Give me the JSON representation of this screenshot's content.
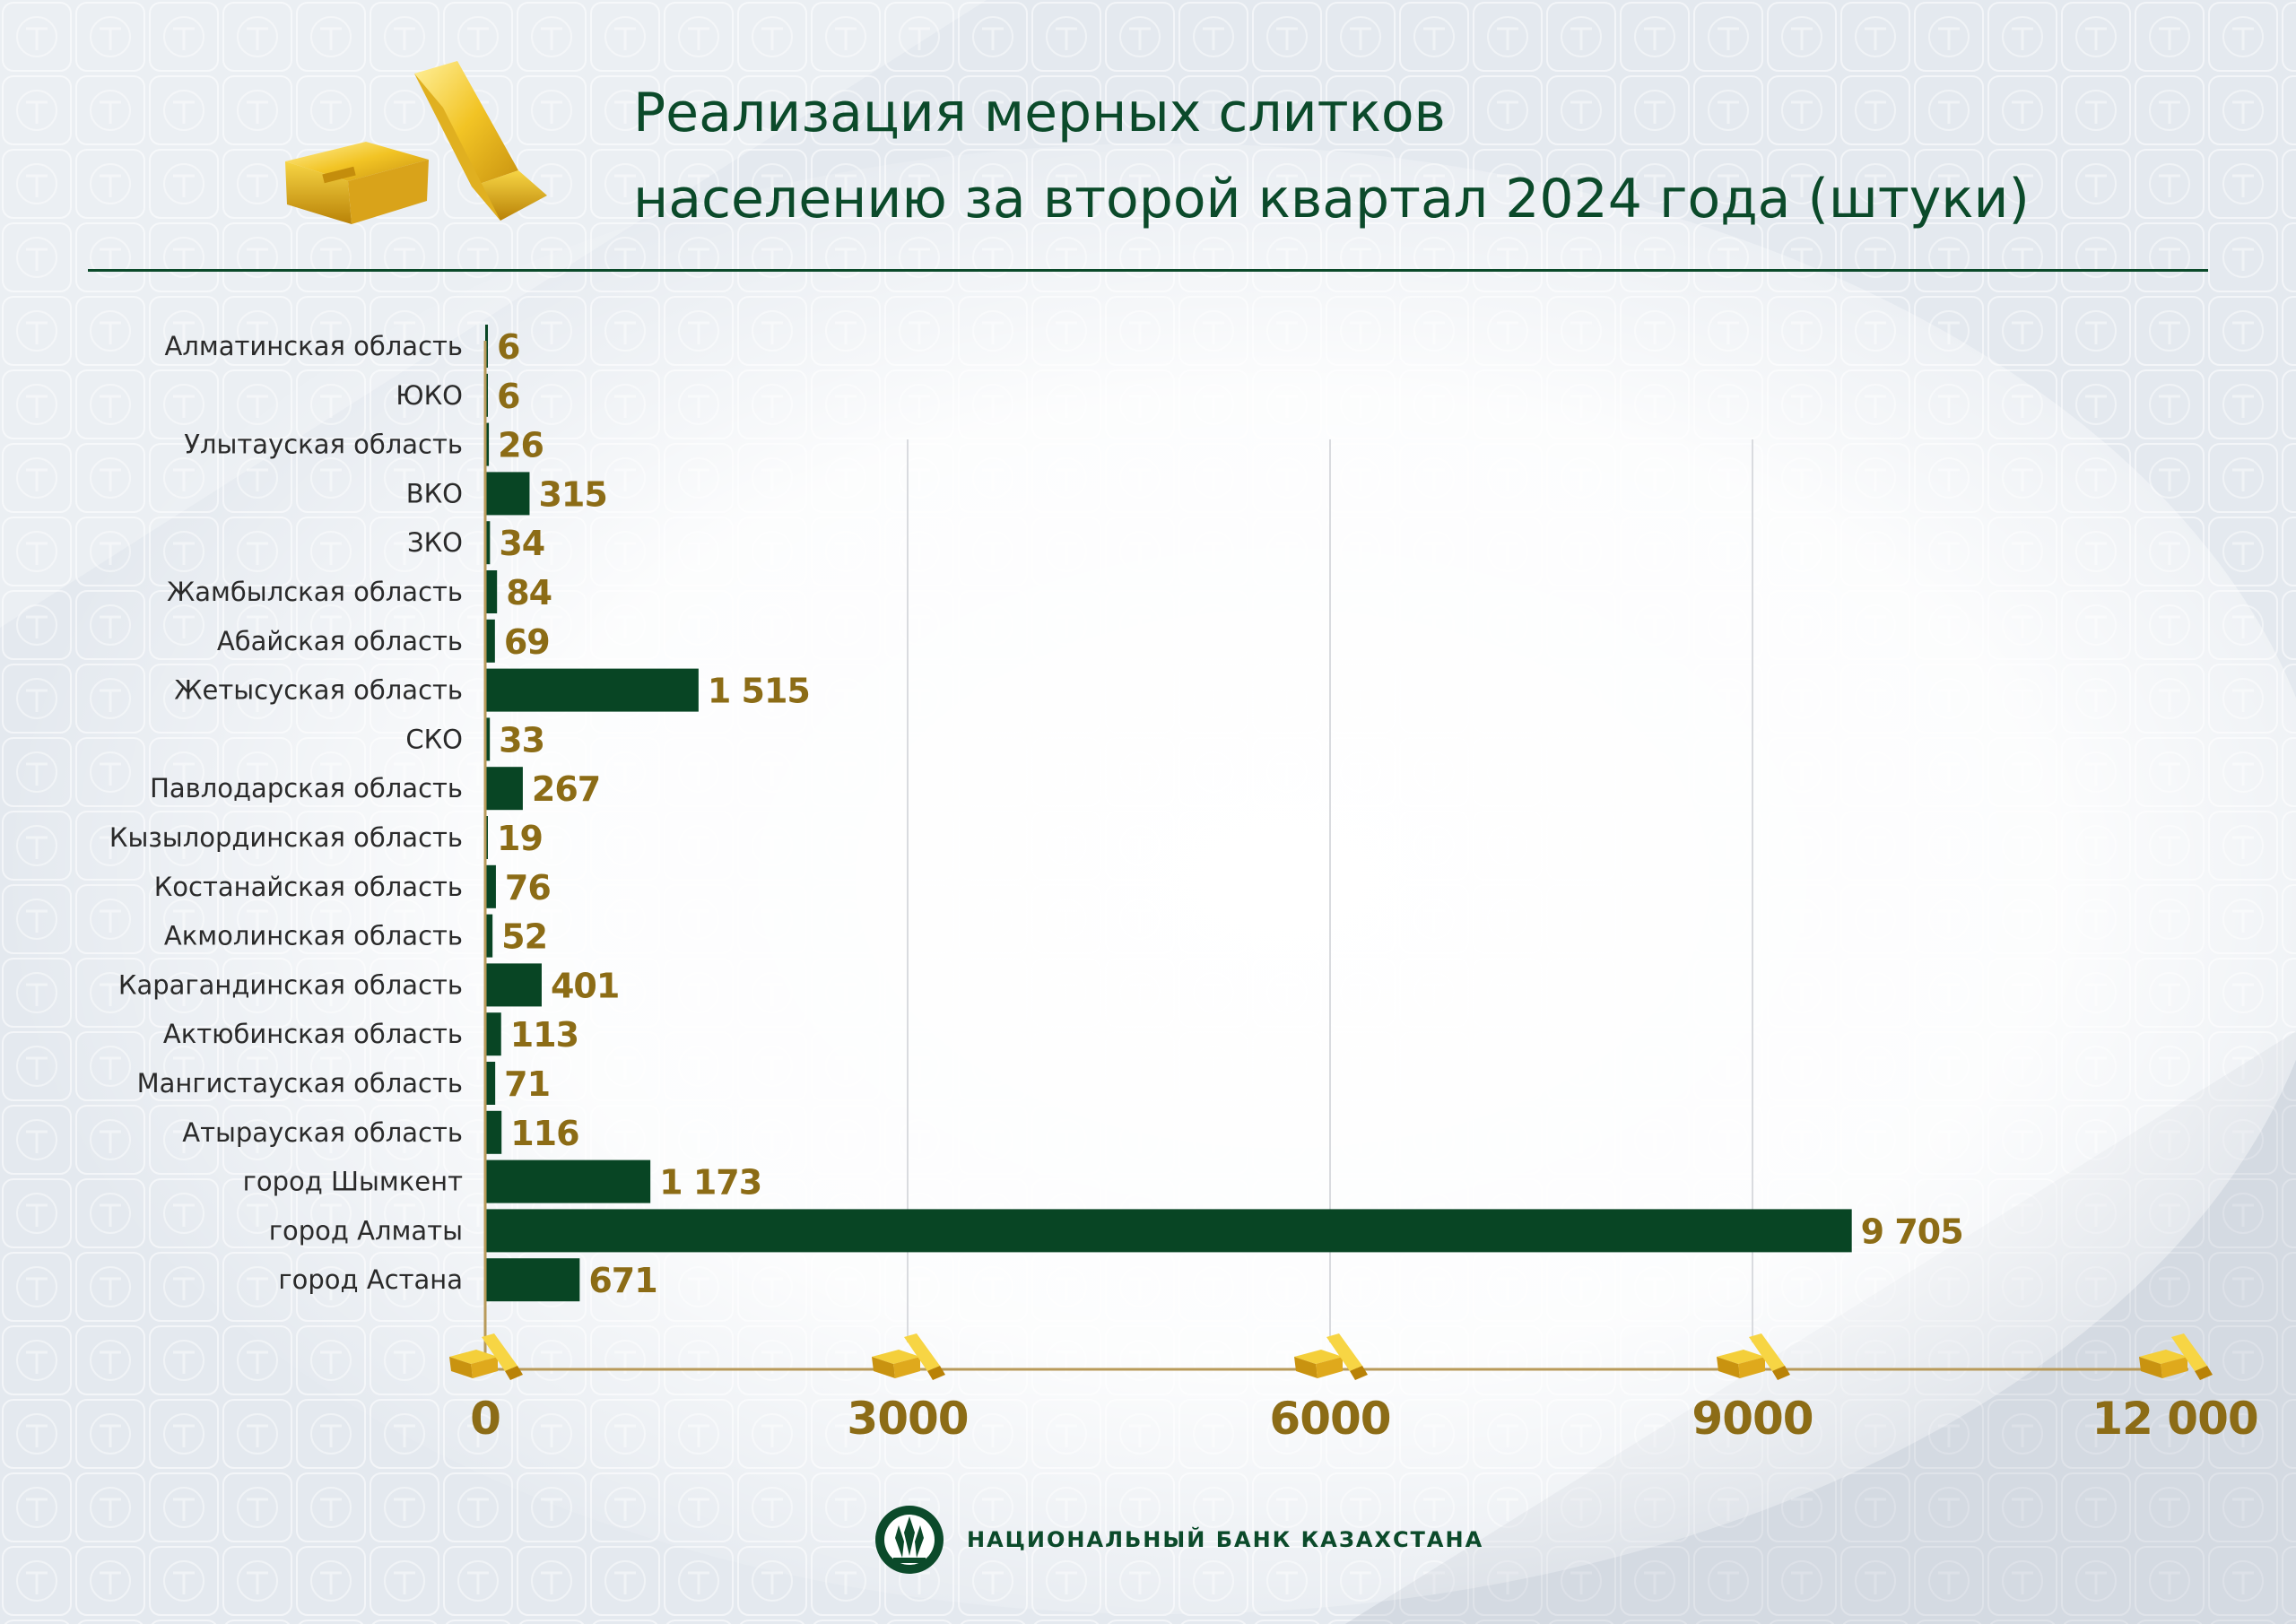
{
  "title_lines": [
    "Реализация мерных слитков",
    "населению за второй квартал 2024 года (штуки)"
  ],
  "chart_data": {
    "type": "bar",
    "orientation": "horizontal",
    "title": "Реализация мерных слитков населению за второй квартал 2024 года (штуки)",
    "categories": [
      "Алматинская область",
      "ЮКО",
      "Улытауская  область",
      "ВКО",
      "ЗКО",
      "Жамбылская  область",
      "Абайская  область",
      "Жетысуская  область",
      "СКО",
      "Павлодарская область",
      "Кызылординская область",
      "Костанайская область",
      "Акмолинская область",
      "Карагандинская область",
      "Актюбинская область",
      "Мангистауская область",
      "Атырауская область",
      "город Шымкент",
      "город Алматы",
      "город Астана"
    ],
    "values": [
      6,
      6,
      26,
      315,
      34,
      84,
      69,
      1515,
      33,
      267,
      19,
      76,
      52,
      401,
      113,
      71,
      116,
      1173,
      9705,
      671
    ],
    "value_labels": [
      "6",
      "6",
      "26",
      "315",
      "34",
      "84",
      "69",
      "1 515",
      "33",
      "267",
      "19",
      "76",
      "52",
      "401",
      "113",
      "71",
      "116",
      "1 173",
      "9 705",
      "671"
    ],
    "x_ticks": [
      0,
      3000,
      6000,
      9000,
      12000
    ],
    "x_tick_labels": [
      "0",
      "3000",
      "6000",
      "9000",
      "12 000"
    ],
    "xlim": [
      0,
      12000
    ],
    "grid": "vertical",
    "colors": {
      "bar": "#084524",
      "value_label": "#8c6c16",
      "axis": "#b89a5a",
      "title": "#0b4a2a"
    }
  },
  "footer": {
    "bank_name": "НАЦИОНАЛЬНЫЙ БАНК КАЗАХСТАНА",
    "logo_icon": "national-bank-emblem-icon"
  },
  "decor": {
    "hero_icon": "gold-bars-icon",
    "tick_icon": "gold-bar-icon"
  }
}
